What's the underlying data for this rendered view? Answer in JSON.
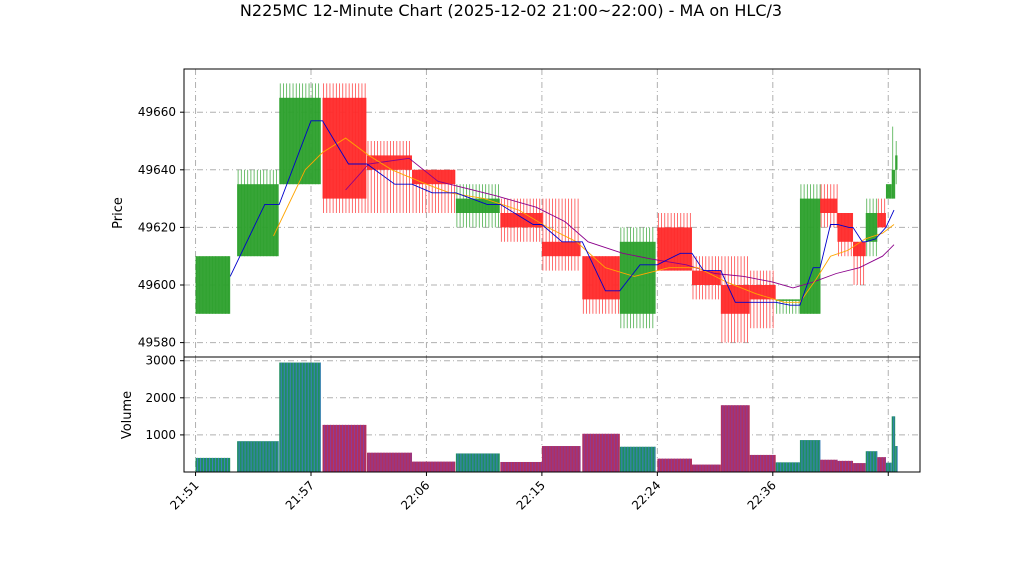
{
  "chart_data": {
    "type": "candlestick",
    "title": "N225MC 12-Minute Chart (2025-12-02 21:00~22:00) - MA on HLC/3",
    "price_panel": {
      "ylabel": "Price",
      "ylim": [
        49575,
        49675
      ],
      "yticks": [
        49580,
        49600,
        49620,
        49640,
        49660
      ],
      "grid": true
    },
    "volume_panel": {
      "ylabel": "Volume",
      "ylim": [
        0,
        3100
      ],
      "yticks": [
        1000,
        2000,
        3000
      ],
      "ytick_labels": [
        "1000",
        "2000",
        "3000"
      ],
      "grid": true
    },
    "xlim": [
      -0.2,
      12.55
    ],
    "xticks": [
      {
        "pos": 0,
        "label": "21:51"
      },
      {
        "pos": 2,
        "label": "21:57"
      },
      {
        "pos": 4,
        "label": "22:06"
      },
      {
        "pos": 6,
        "label": "22:15"
      },
      {
        "pos": 8,
        "label": "22:24"
      },
      {
        "pos": 10,
        "label": "22:36"
      },
      {
        "pos": 12,
        "label": ""
      }
    ],
    "colors": {
      "up": "#2ca02c",
      "down": "#ff2a2a",
      "vol_up": "#1f8f5f",
      "vol_down": "#b03060",
      "ma_fast": "#0000cc",
      "ma_mid": "#ffa500",
      "ma_slow": "#8b008b",
      "grid": "#b0b0b0"
    },
    "candles": [
      {
        "x": 0.0,
        "w": 0.6,
        "o": 49590,
        "h": 49610,
        "l": 49590,
        "c": 49610,
        "v": 380
      },
      {
        "x": 0.72,
        "w": 0.72,
        "o": 49610,
        "h": 49640,
        "l": 49610,
        "c": 49635,
        "v": 830
      },
      {
        "x": 1.45,
        "w": 0.72,
        "o": 49635,
        "h": 49670,
        "l": 49635,
        "c": 49665,
        "v": 2950
      },
      {
        "x": 2.2,
        "w": 0.76,
        "o": 49665,
        "h": 49670,
        "l": 49625,
        "c": 49630,
        "v": 1270
      },
      {
        "x": 2.97,
        "w": 0.78,
        "o": 49645,
        "h": 49650,
        "l": 49625,
        "c": 49640,
        "v": 520
      },
      {
        "x": 3.75,
        "w": 0.75,
        "o": 49640,
        "h": 49640,
        "l": 49625,
        "c": 49635,
        "v": 280
      },
      {
        "x": 4.51,
        "w": 0.76,
        "o": 49625,
        "h": 49635,
        "l": 49620,
        "c": 49630,
        "v": 500
      },
      {
        "x": 5.28,
        "w": 0.73,
        "o": 49625,
        "h": 49630,
        "l": 49615,
        "c": 49620,
        "v": 270
      },
      {
        "x": 6.0,
        "w": 0.67,
        "o": 49615,
        "h": 49630,
        "l": 49605,
        "c": 49610,
        "v": 700
      },
      {
        "x": 6.7,
        "w": 0.65,
        "o": 49610,
        "h": 49610,
        "l": 49590,
        "c": 49595,
        "v": 1030
      },
      {
        "x": 7.35,
        "w": 0.62,
        "o": 49590,
        "h": 49620,
        "l": 49585,
        "c": 49615,
        "v": 680
      },
      {
        "x": 8.0,
        "w": 0.6,
        "o": 49620,
        "h": 49625,
        "l": 49605,
        "c": 49605,
        "v": 360
      },
      {
        "x": 8.6,
        "w": 0.5,
        "o": 49605,
        "h": 49610,
        "l": 49595,
        "c": 49600,
        "v": 200
      },
      {
        "x": 9.1,
        "w": 0.5,
        "o": 49600,
        "h": 49610,
        "l": 49580,
        "c": 49590,
        "v": 1800
      },
      {
        "x": 9.6,
        "w": 0.45,
        "o": 49600,
        "h": 49605,
        "l": 49585,
        "c": 49595,
        "v": 460
      },
      {
        "x": 10.05,
        "w": 0.42,
        "o": 49595,
        "h": 49595,
        "l": 49590,
        "c": 49595,
        "v": 260
      },
      {
        "x": 10.47,
        "w": 0.35,
        "o": 49590,
        "h": 49635,
        "l": 49590,
        "c": 49630,
        "v": 860
      },
      {
        "x": 10.82,
        "w": 0.3,
        "o": 49630,
        "h": 49635,
        "l": 49620,
        "c": 49625,
        "v": 330
      },
      {
        "x": 11.12,
        "w": 0.27,
        "o": 49625,
        "h": 49625,
        "l": 49610,
        "c": 49615,
        "v": 300
      },
      {
        "x": 11.39,
        "w": 0.22,
        "o": 49615,
        "h": 49615,
        "l": 49600,
        "c": 49610,
        "v": 240
      },
      {
        "x": 11.61,
        "w": 0.2,
        "o": 49615,
        "h": 49630,
        "l": 49610,
        "c": 49625,
        "v": 560
      },
      {
        "x": 11.81,
        "w": 0.15,
        "o": 49625,
        "h": 49630,
        "l": 49620,
        "c": 49620,
        "v": 400
      },
      {
        "x": 11.96,
        "w": 0.1,
        "o": 49630,
        "h": 49635,
        "l": 49630,
        "c": 49635,
        "v": 250
      },
      {
        "x": 12.06,
        "w": 0.06,
        "o": 49630,
        "h": 49655,
        "l": 49630,
        "c": 49640,
        "v": 1500
      },
      {
        "x": 12.12,
        "w": 0.04,
        "o": 49640,
        "h": 49650,
        "l": 49635,
        "c": 49645,
        "v": 700
      }
    ],
    "ma_fast": [
      [
        0.6,
        49603
      ],
      [
        1.2,
        49628
      ],
      [
        1.45,
        49628
      ],
      [
        2.0,
        49657
      ],
      [
        2.2,
        49657
      ],
      [
        2.65,
        49642
      ],
      [
        2.97,
        49642
      ],
      [
        3.45,
        49635
      ],
      [
        3.75,
        49635
      ],
      [
        4.1,
        49632
      ],
      [
        4.51,
        49632
      ],
      [
        5.05,
        49628
      ],
      [
        5.28,
        49628
      ],
      [
        5.85,
        49621
      ],
      [
        6.0,
        49621
      ],
      [
        6.35,
        49615
      ],
      [
        6.7,
        49615
      ],
      [
        7.1,
        49598
      ],
      [
        7.35,
        49598
      ],
      [
        7.7,
        49607
      ],
      [
        8.0,
        49607
      ],
      [
        8.4,
        49611
      ],
      [
        8.6,
        49611
      ],
      [
        8.8,
        49605
      ],
      [
        9.1,
        49605
      ],
      [
        9.35,
        49594
      ],
      [
        9.6,
        49594
      ],
      [
        9.8,
        49594
      ],
      [
        10.05,
        49594
      ],
      [
        10.3,
        49593
      ],
      [
        10.47,
        49593
      ],
      [
        10.7,
        49606
      ],
      [
        10.82,
        49606
      ],
      [
        11.0,
        49621
      ],
      [
        11.12,
        49621
      ],
      [
        11.32,
        49620
      ],
      [
        11.39,
        49620
      ],
      [
        11.55,
        49615
      ],
      [
        11.61,
        49615
      ],
      [
        11.78,
        49616
      ],
      [
        11.96,
        49620
      ],
      [
        12.1,
        49626
      ]
    ],
    "ma_mid": [
      [
        1.35,
        49617
      ],
      [
        1.9,
        49640
      ],
      [
        2.2,
        49646
      ],
      [
        2.6,
        49651
      ],
      [
        3.0,
        49645
      ],
      [
        3.4,
        49640
      ],
      [
        4.0,
        49635
      ],
      [
        4.4,
        49632
      ],
      [
        5.0,
        49630
      ],
      [
        5.6,
        49626
      ],
      [
        6.1,
        49620
      ],
      [
        6.6,
        49615
      ],
      [
        7.1,
        49606
      ],
      [
        7.6,
        49603
      ],
      [
        8.2,
        49606
      ],
      [
        8.7,
        49606
      ],
      [
        9.2,
        49601
      ],
      [
        9.7,
        49597
      ],
      [
        10.2,
        49594
      ],
      [
        10.47,
        49594
      ],
      [
        10.75,
        49602
      ],
      [
        11.0,
        49610
      ],
      [
        11.3,
        49612
      ],
      [
        11.6,
        49616
      ],
      [
        11.9,
        49618
      ],
      [
        12.1,
        49621
      ]
    ],
    "ma_slow": [
      [
        2.6,
        49633
      ],
      [
        3.0,
        49642
      ],
      [
        3.7,
        49644
      ],
      [
        4.2,
        49636
      ],
      [
        5.2,
        49631
      ],
      [
        5.9,
        49627
      ],
      [
        6.4,
        49622
      ],
      [
        6.8,
        49615
      ],
      [
        7.4,
        49611
      ],
      [
        7.9,
        49609
      ],
      [
        8.5,
        49607
      ],
      [
        9.0,
        49604
      ],
      [
        9.5,
        49603
      ],
      [
        10.0,
        49601
      ],
      [
        10.35,
        49599
      ],
      [
        10.7,
        49601
      ],
      [
        11.1,
        49604
      ],
      [
        11.5,
        49606
      ],
      [
        11.9,
        49610
      ],
      [
        12.1,
        49614
      ]
    ]
  }
}
